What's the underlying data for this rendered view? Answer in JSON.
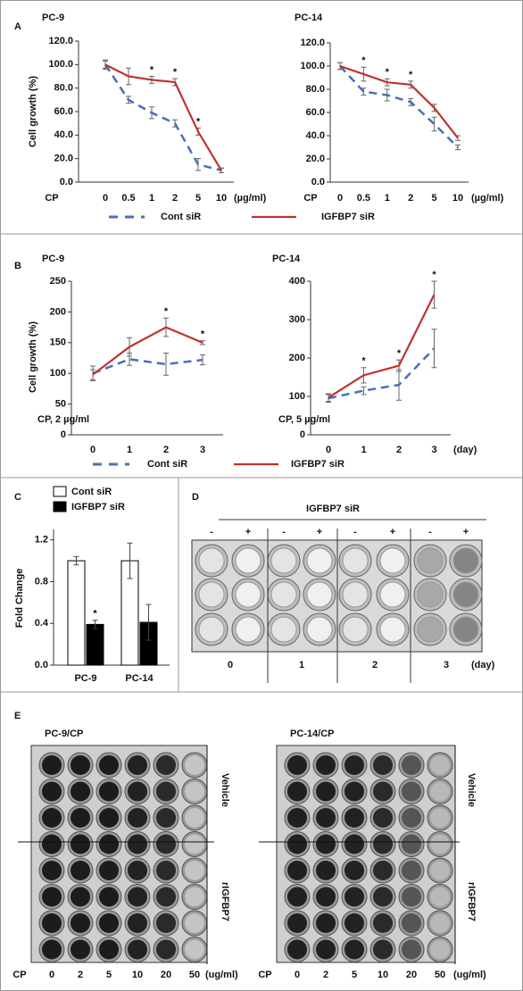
{
  "panel_labels": [
    "A",
    "B",
    "C",
    "D",
    "E"
  ],
  "chart_data": [
    {
      "type": "line",
      "title": "PC-9",
      "y_label": "Cell growth (%)",
      "x_prefix": "CP",
      "x_unit": "(µg/ml)",
      "categories": [
        "0",
        "0.5",
        "1",
        "2",
        "5",
        "10"
      ],
      "ylim": [
        0,
        120
      ],
      "yticks": [
        {
          "value": 0,
          "label": "0.0"
        },
        {
          "value": 20,
          "label": "20.0"
        },
        {
          "value": 40,
          "label": "40.0"
        },
        {
          "value": 60,
          "label": "60.0"
        },
        {
          "value": 80,
          "label": "80.0"
        },
        {
          "value": 100,
          "label": "100.0"
        },
        {
          "value": 120,
          "label": "120.0"
        }
      ],
      "legend": "bottom",
      "series": [
        {
          "name": "Cont siR",
          "color": "#4a6fb5",
          "values": [
            100,
            70,
            59,
            50,
            15,
            10
          ],
          "errors": [
            3,
            3,
            5,
            3,
            5,
            2
          ]
        },
        {
          "name": "IGFBP7 siR",
          "color": "#c0322f",
          "values": [
            100,
            90,
            87,
            85,
            43,
            10
          ],
          "errors": [
            4,
            7,
            3,
            3,
            3,
            2
          ]
        }
      ],
      "annotations": [
        {
          "text": "*",
          "at": 2
        },
        {
          "text": "*",
          "at": 3
        },
        {
          "text": "*",
          "at": 4
        }
      ]
    },
    {
      "type": "line",
      "title": "PC-14",
      "x_prefix": "CP",
      "x_unit": "(µg/ml)",
      "categories": [
        "0",
        "0.5",
        "1",
        "2",
        "5",
        "10"
      ],
      "ylim": [
        0,
        120
      ],
      "yticks": [
        {
          "value": 0,
          "label": "0.0"
        },
        {
          "value": 20,
          "label": "20.0"
        },
        {
          "value": 40,
          "label": "40.0"
        },
        {
          "value": 60,
          "label": "60.0"
        },
        {
          "value": 80,
          "label": "80.0"
        },
        {
          "value": 100,
          "label": "100.0"
        },
        {
          "value": 120,
          "label": "120.0"
        }
      ],
      "series": [
        {
          "color": "#4a6fb5",
          "values": [
            100,
            78,
            75,
            69,
            50,
            30
          ],
          "errors": [
            3,
            3,
            5,
            3,
            6,
            2
          ]
        },
        {
          "color": "#c0322f",
          "values": [
            100,
            93,
            86,
            84,
            64,
            38
          ],
          "errors": [
            3,
            6,
            3,
            3,
            3,
            2
          ]
        }
      ],
      "annotations": [
        {
          "text": "*",
          "at": 1
        },
        {
          "text": "*",
          "at": 2
        },
        {
          "text": "*",
          "at": 3
        }
      ]
    },
    {
      "type": "line",
      "title": "PC-9",
      "y_label": "Cell growth (%)",
      "note": "CP, 2 µg/ml",
      "categories": [
        "0",
        "1",
        "2",
        "3"
      ],
      "ylim": [
        0,
        250
      ],
      "yticks": [
        0,
        50,
        100,
        150,
        200,
        250
      ],
      "legend": "bottom",
      "series": [
        {
          "name": "Cont siR",
          "color": "#4a6fb5",
          "values": [
            100,
            123,
            115,
            122
          ],
          "errors": [
            12,
            10,
            18,
            8
          ]
        },
        {
          "name": "IGFBP7 siR",
          "color": "#c0322f",
          "values": [
            98,
            143,
            175,
            150
          ],
          "errors": [
            8,
            15,
            15,
            3
          ]
        }
      ],
      "annotations": [
        {
          "text": "*",
          "at": 2
        },
        {
          "text": "*",
          "at": 3
        }
      ]
    },
    {
      "type": "line",
      "title": "PC-14",
      "note": "CP, 5 µg/ml",
      "x_unit": "(day)",
      "categories": [
        "0",
        "1",
        "2",
        "3"
      ],
      "ylim": [
        0,
        400
      ],
      "yticks": [
        0,
        100,
        200,
        300,
        400
      ],
      "series": [
        {
          "color": "#4a6fb5",
          "values": [
            95,
            115,
            130,
            225
          ],
          "errors": [
            10,
            10,
            40,
            50
          ]
        },
        {
          "color": "#c0322f",
          "values": [
            97,
            155,
            180,
            365
          ],
          "errors": [
            10,
            20,
            15,
            35
          ]
        }
      ],
      "annotations": [
        {
          "text": "*",
          "at": 1
        },
        {
          "text": "*",
          "at": 2
        },
        {
          "text": "*",
          "at": 3
        }
      ]
    },
    {
      "type": "bar",
      "y_label": "Fold Change",
      "categories": [
        "PC-9",
        "PC-14"
      ],
      "ylim": [
        0,
        1.3
      ],
      "yticks": [
        {
          "value": 0,
          "label": "0.0"
        },
        {
          "value": 0.4,
          "label": "0.4"
        },
        {
          "value": 0.8,
          "label": "0.8"
        },
        {
          "value": 1.2,
          "label": "1.2"
        }
      ],
      "legend": "top-left",
      "series": [
        {
          "name": "Cont siR",
          "color": "#ffffff",
          "values": [
            1.0,
            1.0
          ],
          "errors": [
            0.04,
            0.17
          ]
        },
        {
          "name": "IGFBP7 siR",
          "color": "#000000",
          "values": [
            0.39,
            0.41
          ],
          "errors": [
            0.04,
            0.17
          ]
        }
      ],
      "annotations": [
        {
          "text": "*",
          "at": 0,
          "series": 1
        }
      ]
    }
  ],
  "plate_d": {
    "title": "IGFBP7 siR",
    "signs": [
      "-",
      "+",
      "-",
      "+",
      "-",
      "+",
      "-",
      "+"
    ],
    "days": [
      "0",
      "1",
      "2",
      "3"
    ],
    "unit": "(day)"
  },
  "plate_e": [
    {
      "title": "PC-9/CP",
      "row_labels": [
        "Vehicle",
        "rIGFBP7"
      ],
      "prefix": "CP",
      "columns": [
        "0",
        "2",
        "5",
        "10",
        "20",
        "50"
      ],
      "unit": "(ug/ml)"
    },
    {
      "title": "PC-14/CP",
      "row_labels": [
        "Vehicle",
        "rIGFBP7"
      ],
      "prefix": "CP",
      "columns": [
        "0",
        "2",
        "5",
        "10",
        "20",
        "50"
      ],
      "unit": "(ug/ml)"
    }
  ]
}
